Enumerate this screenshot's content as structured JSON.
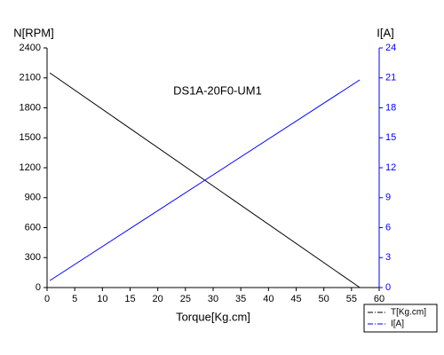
{
  "chart_data": {
    "type": "line",
    "annotation": "DS1A-20F0-UM1",
    "xlabel": "Torque[Kg.cm]",
    "ylabel": "N[RPM]",
    "y2label": "I[A]",
    "x": [
      0.5,
      56.5
    ],
    "series": [
      {
        "name": "T[Kg.cm]",
        "color": "#000000",
        "values": [
          2150,
          0
        ]
      },
      {
        "name": "I[A]",
        "color": "#0000ff",
        "values": [
          0.7,
          20.8
        ],
        "axis": "y2"
      }
    ],
    "xlim": [
      0,
      60
    ],
    "xticks": [
      0,
      5,
      10,
      15,
      20,
      25,
      30,
      35,
      40,
      45,
      50,
      55,
      60
    ],
    "ylim": [
      0,
      2400
    ],
    "yticks": [
      0,
      300,
      600,
      900,
      1200,
      1500,
      1800,
      2100,
      2400
    ],
    "y2lim": [
      0,
      24
    ],
    "y2ticks": [
      0,
      3,
      6,
      9,
      12,
      15,
      18,
      21,
      24
    ],
    "grid": false,
    "legend": "lower right"
  }
}
